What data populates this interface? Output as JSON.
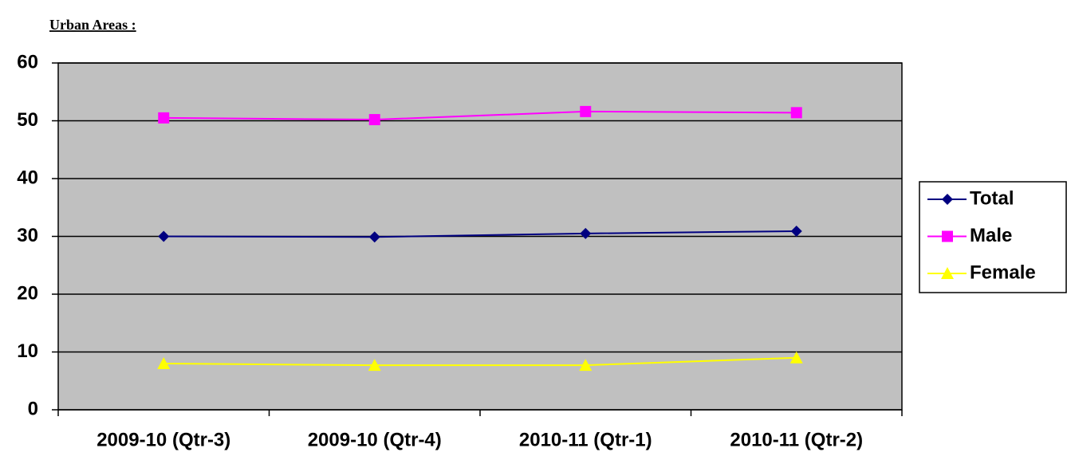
{
  "chart_data": {
    "type": "line",
    "title": "Urban Areas :",
    "categories": [
      "2009-10 (Qtr-3)",
      "2009-10 (Qtr-4)",
      "2010-11 (Qtr-1)",
      "2010-11 (Qtr-2)"
    ],
    "series": [
      {
        "name": "Total",
        "color": "#000080",
        "marker": "diamond",
        "values": [
          30.0,
          29.9,
          30.5,
          30.9
        ]
      },
      {
        "name": "Male",
        "color": "#ff00ff",
        "marker": "square",
        "values": [
          50.5,
          50.2,
          51.6,
          51.4
        ]
      },
      {
        "name": "Female",
        "color": "#ffff00",
        "marker": "triangle",
        "values": [
          8.0,
          7.7,
          7.7,
          9.0
        ]
      }
    ],
    "ylim": [
      0,
      60
    ],
    "yticks": [
      0,
      10,
      20,
      30,
      40,
      50,
      60
    ],
    "grid": true,
    "legend": "right"
  }
}
